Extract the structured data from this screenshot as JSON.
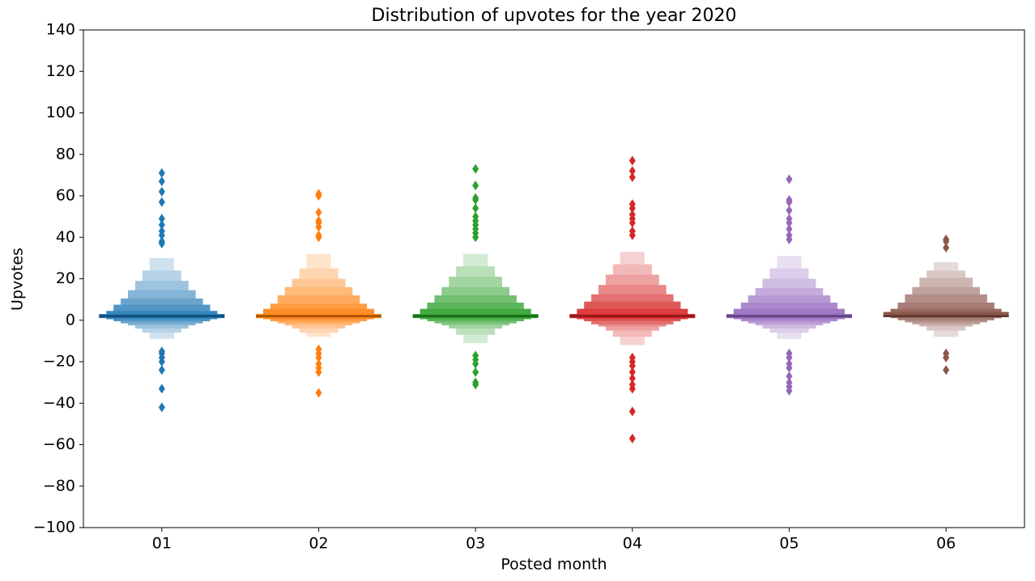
{
  "chart_data": {
    "type": "boxen",
    "title": "Distribution of upvotes for the year 2020",
    "xlabel": "Posted month",
    "ylabel": "Upvotes",
    "categories": [
      "01",
      "02",
      "03",
      "04",
      "05",
      "06"
    ],
    "colors": [
      "#1f77b4",
      "#ff7f0e",
      "#2ca02c",
      "#d62728",
      "#9467bd",
      "#8c564b"
    ],
    "medians": [
      2,
      2,
      2,
      2,
      2,
      2
    ],
    "boxes": [
      [
        [
          1,
          3
        ],
        [
          0.5,
          4.5
        ],
        [
          -0.5,
          7.5
        ],
        [
          -1.5,
          10.5
        ],
        [
          -2.5,
          14.5
        ],
        [
          -4,
          19
        ],
        [
          -6,
          24
        ],
        [
          -9,
          30
        ]
      ],
      [
        [
          1,
          3
        ],
        [
          0.5,
          5.5
        ],
        [
          -0.5,
          8
        ],
        [
          -1.5,
          12
        ],
        [
          -2.5,
          16
        ],
        [
          -4,
          20
        ],
        [
          -6,
          25
        ],
        [
          -8,
          32
        ]
      ],
      [
        [
          1,
          3
        ],
        [
          0.5,
          5.5
        ],
        [
          -0.5,
          8.5
        ],
        [
          -1.5,
          12
        ],
        [
          -2.5,
          16
        ],
        [
          -4,
          21
        ],
        [
          -7,
          26
        ],
        [
          -11,
          32
        ]
      ],
      [
        [
          1,
          3
        ],
        [
          0.5,
          5.5
        ],
        [
          -0.5,
          9
        ],
        [
          -2,
          12.5
        ],
        [
          -3,
          17
        ],
        [
          -5,
          22
        ],
        [
          -8,
          27
        ],
        [
          -12,
          33
        ]
      ],
      [
        [
          1,
          3
        ],
        [
          0.5,
          5.5
        ],
        [
          -0.5,
          8.5
        ],
        [
          -1.5,
          12
        ],
        [
          -2.5,
          15.5
        ],
        [
          -4,
          20
        ],
        [
          -6,
          25
        ],
        [
          -9,
          31
        ]
      ],
      [
        [
          1.5,
          4
        ],
        [
          1,
          5.5
        ],
        [
          0,
          8.5
        ],
        [
          -1,
          12.5
        ],
        [
          -2,
          16
        ],
        [
          -3,
          20.5
        ],
        [
          -5,
          24
        ],
        [
          -8,
          28
        ]
      ]
    ],
    "outliers": [
      [
        71,
        67,
        62,
        57,
        49,
        46,
        43,
        41,
        38,
        37,
        -15,
        -16,
        -18,
        -20,
        -24,
        -33,
        -42
      ],
      [
        61,
        60,
        52,
        48,
        47,
        45,
        41,
        40,
        -14,
        -16,
        -18,
        -21,
        -23,
        -25,
        -35
      ],
      [
        73,
        65,
        59,
        58,
        54,
        50,
        48,
        46,
        44,
        42,
        40,
        -17,
        -19,
        -21,
        -25,
        -30,
        -31
      ],
      [
        77,
        72,
        69,
        56,
        54,
        51,
        49,
        47,
        43,
        41,
        -18,
        -20,
        -22,
        -25,
        -28,
        -31,
        -33,
        -44,
        -57
      ],
      [
        68,
        58,
        57,
        53,
        49,
        47,
        44,
        41,
        39,
        -16,
        -18,
        -21,
        -23,
        -27,
        -30,
        -32,
        -34
      ],
      [
        39,
        38,
        35,
        -16,
        -18,
        -24
      ]
    ],
    "ylim": [
      -100,
      140
    ],
    "yticks": [
      {
        "value": -100,
        "label": "−100"
      },
      {
        "value": -80,
        "label": "−80"
      },
      {
        "value": -60,
        "label": "−60"
      },
      {
        "value": -40,
        "label": "−40"
      },
      {
        "value": -20,
        "label": "−20"
      },
      0,
      20,
      40,
      60,
      80,
      100,
      120,
      140
    ]
  }
}
